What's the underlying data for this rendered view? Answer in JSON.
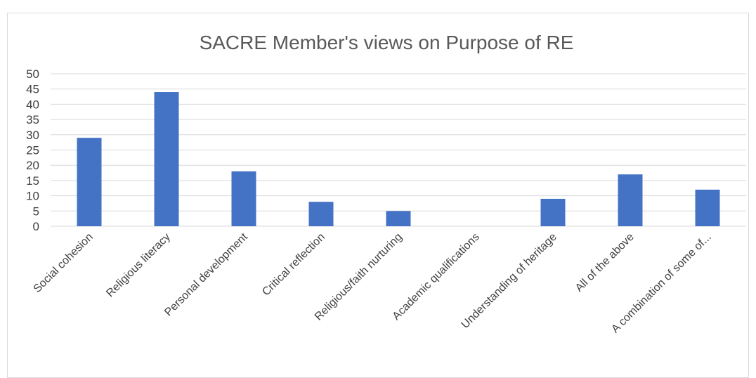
{
  "chart_data": {
    "type": "bar",
    "title": "SACRE Member's views on Purpose of RE",
    "xlabel": "",
    "ylabel": "",
    "categories": [
      "Social cohesion",
      "Religious literacy",
      "Personal development",
      "Critical reflection",
      "Religious/faith nurturing",
      "Academic qualifications",
      "Understanding of heritage",
      "All of the above",
      "A combination of some of..."
    ],
    "values": [
      29,
      44,
      18,
      8,
      5,
      0,
      9,
      17,
      12
    ],
    "ylim": [
      0,
      50
    ],
    "yticks": [
      "0",
      "5",
      "10",
      "15",
      "20",
      "25",
      "30",
      "35",
      "40",
      "45",
      "50"
    ],
    "grid": true,
    "legend": "none",
    "bar_color": "#4472c4"
  }
}
